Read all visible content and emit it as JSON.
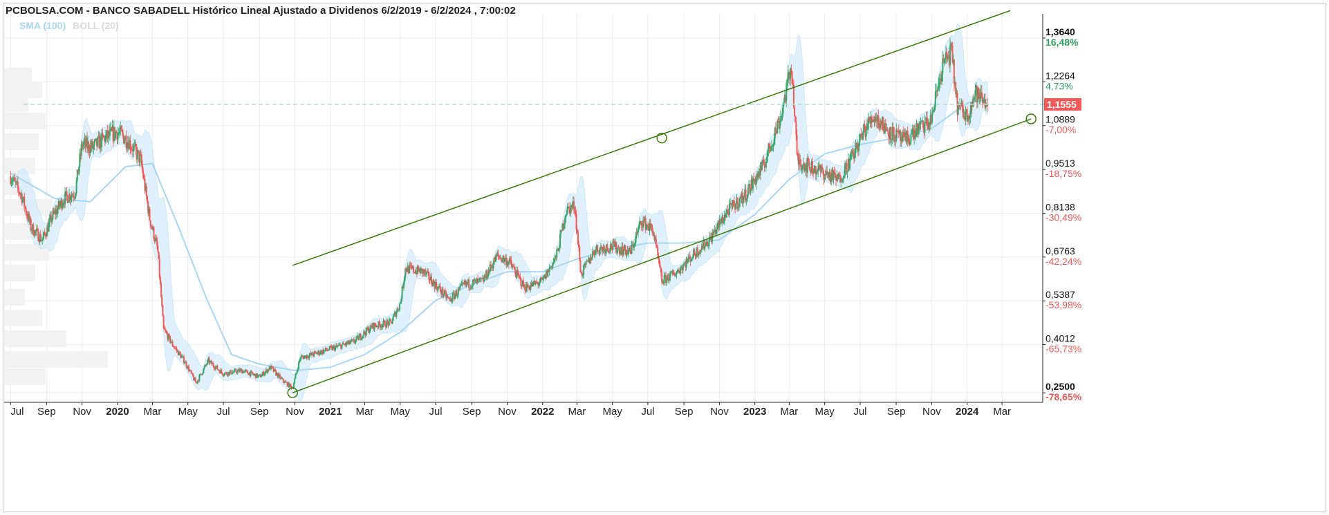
{
  "header": {
    "title": "PCBOLSA.COM - BANCO SABADELL Histórico Lineal Ajustado a Dividenos 6/2/2019 - 6/2/2024 , 7:00:02",
    "legend": [
      {
        "label": "SMA (100)",
        "color": "#a9d6f5"
      },
      {
        "label": "BOLL (20)",
        "color": "#d9d9d9"
      }
    ]
  },
  "chart_data": {
    "type": "candlestick",
    "title": "PCBOLSA.COM - BANCO SABADELL Histórico Lineal Ajustado a Dividenos 6/2/2019 - 6/2/2024 , 7:00:02",
    "x_ticks": [
      {
        "label": "Jul",
        "bold": false
      },
      {
        "label": "Sep",
        "bold": false
      },
      {
        "label": "Nov",
        "bold": false
      },
      {
        "label": "2020",
        "bold": true
      },
      {
        "label": "Mar",
        "bold": false
      },
      {
        "label": "May",
        "bold": false
      },
      {
        "label": "Jul",
        "bold": false
      },
      {
        "label": "Sep",
        "bold": false
      },
      {
        "label": "Nov",
        "bold": false
      },
      {
        "label": "2021",
        "bold": true
      },
      {
        "label": "Mar",
        "bold": false
      },
      {
        "label": "May",
        "bold": false
      },
      {
        "label": "Jul",
        "bold": false
      },
      {
        "label": "Sep",
        "bold": false
      },
      {
        "label": "Nov",
        "bold": false
      },
      {
        "label": "2022",
        "bold": true
      },
      {
        "label": "Mar",
        "bold": false
      },
      {
        "label": "May",
        "bold": false
      },
      {
        "label": "Jul",
        "bold": false
      },
      {
        "label": "Sep",
        "bold": false
      },
      {
        "label": "Nov",
        "bold": false
      },
      {
        "label": "2023",
        "bold": true
      },
      {
        "label": "Mar",
        "bold": false
      },
      {
        "label": "May",
        "bold": false
      },
      {
        "label": "Jul",
        "bold": false
      },
      {
        "label": "Sep",
        "bold": false
      },
      {
        "label": "Nov",
        "bold": false
      },
      {
        "label": "2024",
        "bold": true
      },
      {
        "label": "Mar",
        "bold": false
      }
    ],
    "y_ticks": [
      {
        "price": "1,3640",
        "pct": "16,48%",
        "value": 1.364,
        "pct_color": "#2e9e5f",
        "bold": true
      },
      {
        "price": "1,2264",
        "pct": "4,73%",
        "value": 1.2264,
        "pct_color": "#2e9e5f",
        "bold": false
      },
      {
        "price": "1,0889",
        "pct": "-7,00%",
        "value": 1.0889,
        "pct_color": "#e85a5a",
        "bold": false
      },
      {
        "price": "0,9513",
        "pct": "-18,75%",
        "value": 0.9513,
        "pct_color": "#e85a5a",
        "bold": false
      },
      {
        "price": "0,8138",
        "pct": "-30,49%",
        "value": 0.8138,
        "pct_color": "#e85a5a",
        "bold": false
      },
      {
        "price": "0,6763",
        "pct": "-42,24%",
        "value": 0.6763,
        "pct_color": "#e85a5a",
        "bold": false
      },
      {
        "price": "0,5387",
        "pct": "-53,98%",
        "value": 0.5387,
        "pct_color": "#e85a5a",
        "bold": false
      },
      {
        "price": "0,4012",
        "pct": "-65,73%",
        "value": 0.4012,
        "pct_color": "#e85a5a",
        "bold": false
      },
      {
        "price": "0,2500",
        "pct": "-78,65%",
        "value": 0.25,
        "pct_color": "#e85a5a",
        "bold": true
      }
    ],
    "current_price": {
      "label": "1,1555",
      "value": 1.1555,
      "color": "#f05a5a"
    },
    "ylim": [
      0.22,
      1.44
    ],
    "close_series": [
      {
        "date": "2019-07-01",
        "close": 0.93
      },
      {
        "date": "2019-07-20",
        "close": 0.87
      },
      {
        "date": "2019-08-05",
        "close": 0.77
      },
      {
        "date": "2019-08-25",
        "close": 0.73
      },
      {
        "date": "2019-09-10",
        "close": 0.8
      },
      {
        "date": "2019-10-01",
        "close": 0.86
      },
      {
        "date": "2019-10-20",
        "close": 0.88
      },
      {
        "date": "2019-11-01",
        "close": 1.03
      },
      {
        "date": "2019-11-20",
        "close": 1.02
      },
      {
        "date": "2019-12-10",
        "close": 1.05
      },
      {
        "date": "2020-01-01",
        "close": 1.07
      },
      {
        "date": "2020-01-20",
        "close": 1.04
      },
      {
        "date": "2020-02-10",
        "close": 0.98
      },
      {
        "date": "2020-02-25",
        "close": 0.8
      },
      {
        "date": "2020-03-10",
        "close": 0.7
      },
      {
        "date": "2020-03-20",
        "close": 0.45
      },
      {
        "date": "2020-04-05",
        "close": 0.4
      },
      {
        "date": "2020-04-25",
        "close": 0.35
      },
      {
        "date": "2020-05-15",
        "close": 0.28
      },
      {
        "date": "2020-06-05",
        "close": 0.35
      },
      {
        "date": "2020-07-01",
        "close": 0.31
      },
      {
        "date": "2020-08-01",
        "close": 0.32
      },
      {
        "date": "2020-09-01",
        "close": 0.3
      },
      {
        "date": "2020-09-20",
        "close": 0.33
      },
      {
        "date": "2020-10-10",
        "close": 0.29
      },
      {
        "date": "2020-10-28",
        "close": 0.265
      },
      {
        "date": "2020-11-10",
        "close": 0.36
      },
      {
        "date": "2020-12-01",
        "close": 0.37
      },
      {
        "date": "2021-01-05",
        "close": 0.39
      },
      {
        "date": "2021-02-10",
        "close": 0.41
      },
      {
        "date": "2021-03-15",
        "close": 0.46
      },
      {
        "date": "2021-04-15",
        "close": 0.47
      },
      {
        "date": "2021-05-01",
        "close": 0.53
      },
      {
        "date": "2021-05-10",
        "close": 0.64
      },
      {
        "date": "2021-06-10",
        "close": 0.63
      },
      {
        "date": "2021-07-05",
        "close": 0.58
      },
      {
        "date": "2021-07-25",
        "close": 0.54
      },
      {
        "date": "2021-08-20",
        "close": 0.59
      },
      {
        "date": "2021-09-20",
        "close": 0.6
      },
      {
        "date": "2021-10-15",
        "close": 0.68
      },
      {
        "date": "2021-11-05",
        "close": 0.66
      },
      {
        "date": "2021-12-01",
        "close": 0.58
      },
      {
        "date": "2022-01-01",
        "close": 0.6
      },
      {
        "date": "2022-01-25",
        "close": 0.68
      },
      {
        "date": "2022-02-10",
        "close": 0.82
      },
      {
        "date": "2022-02-25",
        "close": 0.84
      },
      {
        "date": "2022-03-08",
        "close": 0.62
      },
      {
        "date": "2022-04-01",
        "close": 0.7
      },
      {
        "date": "2022-05-01",
        "close": 0.71
      },
      {
        "date": "2022-06-01",
        "close": 0.69
      },
      {
        "date": "2022-06-20",
        "close": 0.79
      },
      {
        "date": "2022-07-10",
        "close": 0.76
      },
      {
        "date": "2022-07-25",
        "close": 0.6
      },
      {
        "date": "2022-08-20",
        "close": 0.63
      },
      {
        "date": "2022-09-15",
        "close": 0.68
      },
      {
        "date": "2022-10-15",
        "close": 0.73
      },
      {
        "date": "2022-11-15",
        "close": 0.82
      },
      {
        "date": "2022-12-15",
        "close": 0.87
      },
      {
        "date": "2023-01-15",
        "close": 0.96
      },
      {
        "date": "2023-02-15",
        "close": 1.12
      },
      {
        "date": "2023-03-05",
        "close": 1.28
      },
      {
        "date": "2023-03-15",
        "close": 0.98
      },
      {
        "date": "2023-04-05",
        "close": 0.96
      },
      {
        "date": "2023-05-01",
        "close": 0.94
      },
      {
        "date": "2023-05-25",
        "close": 0.92
      },
      {
        "date": "2023-06-20",
        "close": 1.0
      },
      {
        "date": "2023-07-10",
        "close": 1.08
      },
      {
        "date": "2023-07-25",
        "close": 1.12
      },
      {
        "date": "2023-08-20",
        "close": 1.07
      },
      {
        "date": "2023-09-15",
        "close": 1.04
      },
      {
        "date": "2023-10-10",
        "close": 1.08
      },
      {
        "date": "2023-10-30",
        "close": 1.1
      },
      {
        "date": "2023-11-20",
        "close": 1.28
      },
      {
        "date": "2023-12-05",
        "close": 1.32
      },
      {
        "date": "2023-12-15",
        "close": 1.15
      },
      {
        "date": "2024-01-01",
        "close": 1.12
      },
      {
        "date": "2024-01-15",
        "close": 1.19
      },
      {
        "date": "2024-02-06",
        "close": 1.1555
      }
    ],
    "sma_100": [
      {
        "date": "2019-07-01",
        "value": 0.94
      },
      {
        "date": "2019-09-15",
        "value": 0.86
      },
      {
        "date": "2019-11-15",
        "value": 0.85
      },
      {
        "date": "2020-01-15",
        "value": 0.96
      },
      {
        "date": "2020-03-01",
        "value": 0.97
      },
      {
        "date": "2020-04-15",
        "value": 0.77
      },
      {
        "date": "2020-06-01",
        "value": 0.55
      },
      {
        "date": "2020-07-15",
        "value": 0.37
      },
      {
        "date": "2020-09-01",
        "value": 0.34
      },
      {
        "date": "2020-11-01",
        "value": 0.32
      },
      {
        "date": "2021-01-01",
        "value": 0.33
      },
      {
        "date": "2021-03-01",
        "value": 0.37
      },
      {
        "date": "2021-05-01",
        "value": 0.44
      },
      {
        "date": "2021-07-01",
        "value": 0.54
      },
      {
        "date": "2021-09-01",
        "value": 0.59
      },
      {
        "date": "2021-11-01",
        "value": 0.63
      },
      {
        "date": "2022-01-01",
        "value": 0.63
      },
      {
        "date": "2022-03-01",
        "value": 0.67
      },
      {
        "date": "2022-05-01",
        "value": 0.7
      },
      {
        "date": "2022-07-01",
        "value": 0.72
      },
      {
        "date": "2022-09-01",
        "value": 0.72
      },
      {
        "date": "2022-11-01",
        "value": 0.73
      },
      {
        "date": "2023-01-01",
        "value": 0.81
      },
      {
        "date": "2023-03-01",
        "value": 0.92
      },
      {
        "date": "2023-05-01",
        "value": 1.0
      },
      {
        "date": "2023-07-01",
        "value": 1.03
      },
      {
        "date": "2023-09-01",
        "value": 1.05
      },
      {
        "date": "2023-11-01",
        "value": 1.08
      },
      {
        "date": "2024-01-01",
        "value": 1.16
      },
      {
        "date": "2024-02-06",
        "value": 1.17
      }
    ],
    "trend_channel": {
      "color": "#3a7a0a",
      "lower_line": [
        {
          "date": "2020-10-28",
          "value": 0.25
        },
        {
          "date": "2024-04-20",
          "value": 1.11
        }
      ],
      "upper_line": [
        {
          "date": "2020-10-28",
          "value": 0.65
        },
        {
          "date": "2024-03-15",
          "value": 1.45
        }
      ],
      "anchor_points": [
        {
          "date": "2020-10-28",
          "value": 0.25
        },
        {
          "date": "2022-07-25",
          "value": 1.05
        },
        {
          "date": "2024-04-20",
          "value": 1.11
        }
      ]
    },
    "colors": {
      "up": "#3aa66b",
      "down": "#f05a5a",
      "band_fill": "#d6ecfb",
      "sma": "#a9d6f5",
      "grid": "#ececec"
    }
  }
}
